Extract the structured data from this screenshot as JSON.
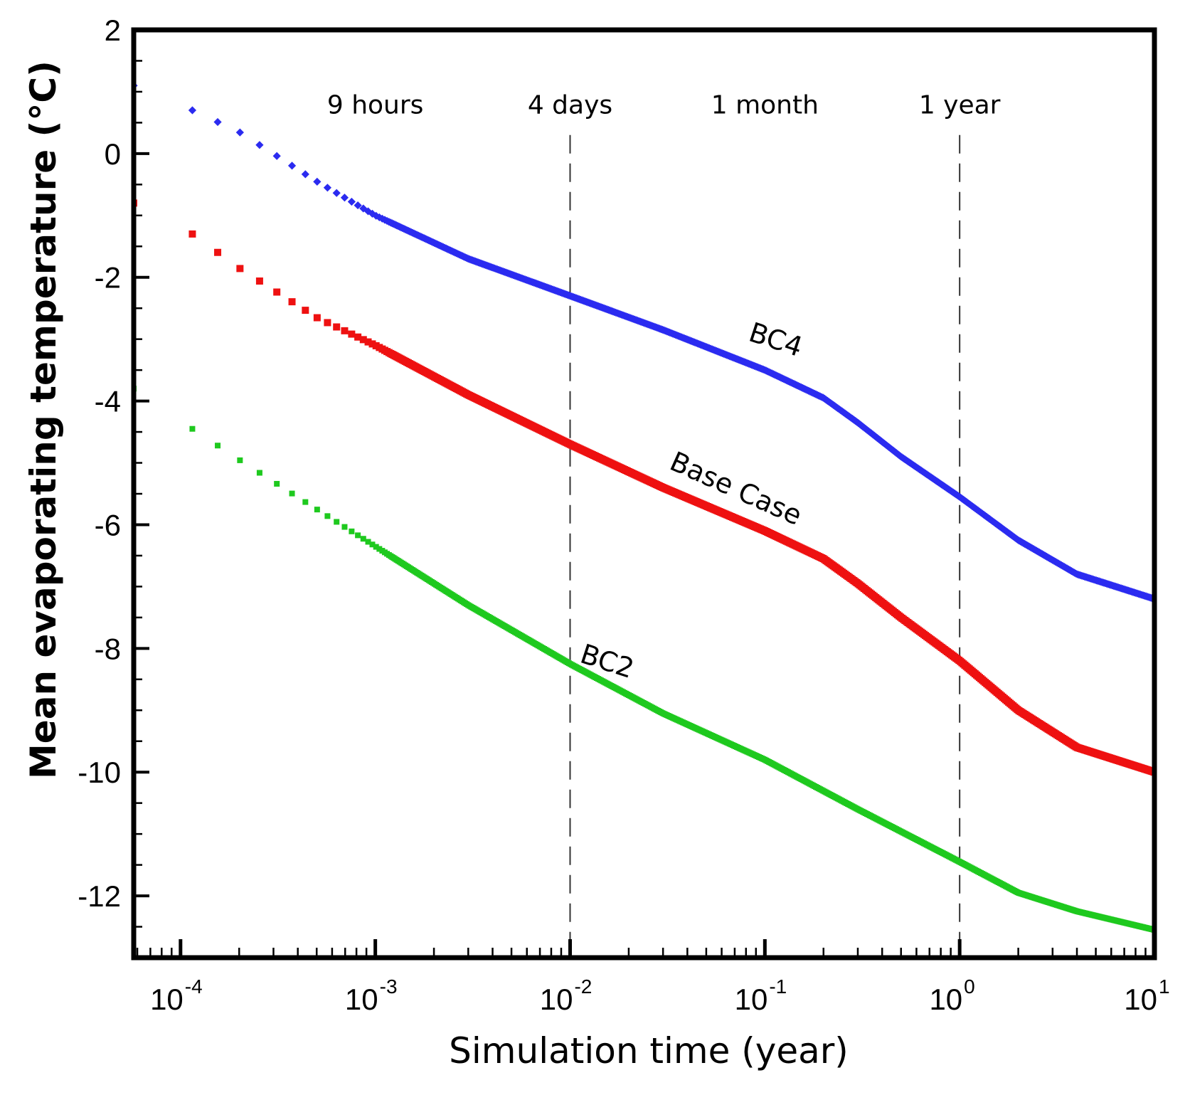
{
  "chart_data": {
    "type": "scatter",
    "title": "",
    "xlabel": "Simulation time (year)",
    "ylabel": "Mean evaporating temperature (°C)",
    "xscale": "log",
    "xlim": [
      5.75e-05,
      10
    ],
    "ylim": [
      -13,
      2
    ],
    "x_tick_labels": [
      {
        "base": "10",
        "exp": "-4",
        "value": 0.0001
      },
      {
        "base": "10",
        "exp": "-3",
        "value": 0.001
      },
      {
        "base": "10",
        "exp": "-2",
        "value": 0.01
      },
      {
        "base": "10",
        "exp": "-1",
        "value": 0.1
      },
      {
        "base": "10",
        "exp": "0",
        "value": 1
      },
      {
        "base": "10",
        "exp": "1",
        "value": 10
      }
    ],
    "y_ticks": [
      2,
      0,
      -2,
      -4,
      -6,
      -8,
      -10,
      -12
    ],
    "y_tick_labels": [
      "2",
      "0",
      "-2",
      "-4",
      "-6",
      "-8",
      "-10",
      "-12"
    ],
    "reference_lines": [
      {
        "x": 0.01,
        "style": "dashed"
      },
      {
        "x": 1,
        "style": "dashed"
      }
    ],
    "annotations": [
      {
        "text": "9 hours",
        "x": 0.001,
        "y": 0.65
      },
      {
        "text": "4 days",
        "x": 0.01,
        "y": 0.65
      },
      {
        "text": "1 month",
        "x": 0.1,
        "y": 0.65
      },
      {
        "text": "1 year",
        "x": 1,
        "y": 0.65
      }
    ],
    "series": [
      {
        "name": "BC4",
        "color": "#2b2bf0",
        "marker": "diamond",
        "label_pos": {
          "x": 0.11,
          "y": -3.15,
          "angle": 18
        },
        "points": [
          [
            5.75e-05,
            1.1
          ],
          [
            0.0001,
            0.8
          ],
          [
            0.000115,
            0.7
          ],
          [
            0.0002,
            0.35
          ],
          [
            0.0005,
            -0.45
          ],
          [
            0.001,
            -1.0
          ],
          [
            0.003,
            -1.7
          ],
          [
            0.01,
            -2.3
          ],
          [
            0.03,
            -2.85
          ],
          [
            0.1,
            -3.5
          ],
          [
            0.2,
            -3.95
          ],
          [
            0.3,
            -4.35
          ],
          [
            0.5,
            -4.9
          ],
          [
            1,
            -5.55
          ],
          [
            2,
            -6.25
          ],
          [
            4,
            -6.8
          ],
          [
            10,
            -7.2
          ]
        ]
      },
      {
        "name": "Base Case",
        "color": "#ee1111",
        "marker": "square",
        "label_pos": {
          "x": 0.068,
          "y": -5.55,
          "angle": 24
        },
        "points": [
          [
            5.75e-05,
            -0.8
          ],
          [
            0.0001,
            -1.15
          ],
          [
            0.000115,
            -1.3
          ],
          [
            0.0002,
            -1.85
          ],
          [
            0.0005,
            -2.65
          ],
          [
            0.001,
            -3.1
          ],
          [
            0.003,
            -3.9
          ],
          [
            0.01,
            -4.7
          ],
          [
            0.03,
            -5.4
          ],
          [
            0.1,
            -6.1
          ],
          [
            0.2,
            -6.55
          ],
          [
            0.3,
            -6.95
          ],
          [
            0.5,
            -7.5
          ],
          [
            1,
            -8.2
          ],
          [
            2,
            -9.0
          ],
          [
            4,
            -9.6
          ],
          [
            10,
            -10.0
          ]
        ]
      },
      {
        "name": "BC2",
        "color": "#1ec91e",
        "marker": "square",
        "label_pos": {
          "x": 0.015,
          "y": -8.35,
          "angle": 18
        },
        "points": [
          [
            5.75e-05,
            -3.8
          ],
          [
            0.0001,
            -4.3
          ],
          [
            0.000115,
            -4.45
          ],
          [
            0.0002,
            -4.95
          ],
          [
            0.0005,
            -5.75
          ],
          [
            0.001,
            -6.35
          ],
          [
            0.003,
            -7.3
          ],
          [
            0.01,
            -8.25
          ],
          [
            0.03,
            -9.05
          ],
          [
            0.1,
            -9.8
          ],
          [
            0.3,
            -10.6
          ],
          [
            1,
            -11.45
          ],
          [
            2,
            -11.95
          ],
          [
            4,
            -12.25
          ],
          [
            10,
            -12.55
          ]
        ]
      }
    ]
  }
}
